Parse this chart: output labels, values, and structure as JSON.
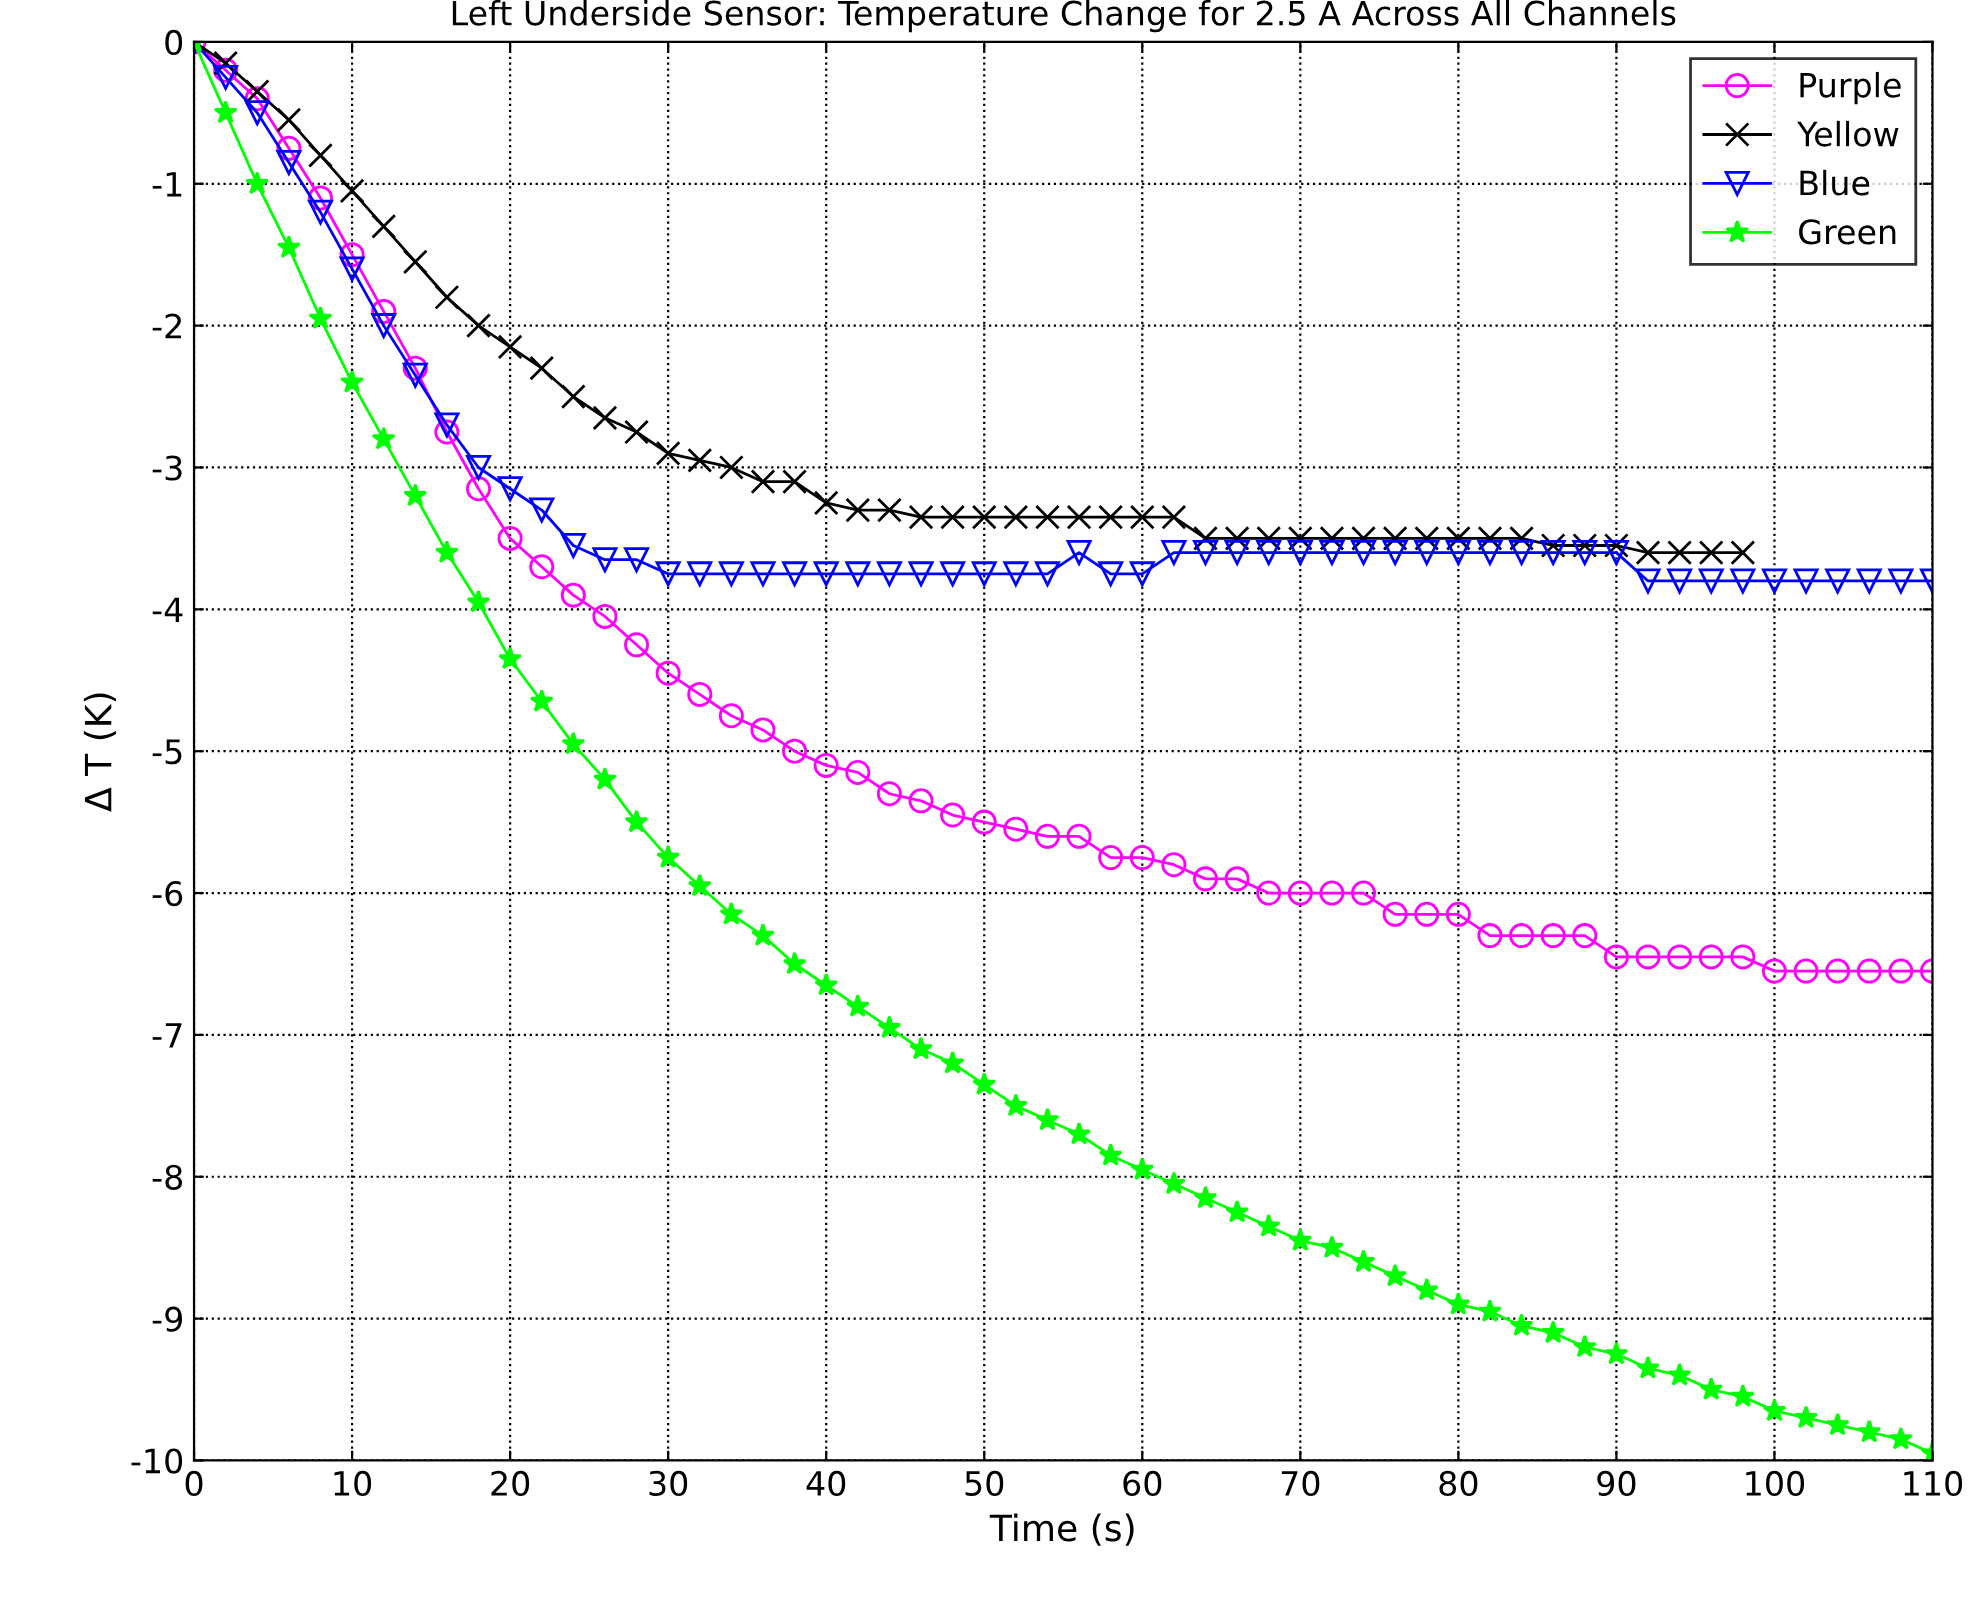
{
  "chart_data": {
    "type": "line",
    "title": "Left Underside Sensor: Temperature Change for 2.5 A Across All Channels",
    "xlabel": "Time (s)",
    "ylabel": "Δ T (K)",
    "xlim": [
      0,
      110
    ],
    "xticks": [
      0,
      10,
      20,
      30,
      40,
      50,
      60,
      70,
      80,
      90,
      100,
      110
    ],
    "ylim": [
      -10,
      0
    ],
    "yticks": [
      -10,
      -9,
      -8,
      -7,
      -6,
      -5,
      -4,
      -3,
      -2,
      -1,
      0
    ],
    "grid": true,
    "legend": "top right",
    "line_style": "solid",
    "series": [
      {
        "name": "Purple",
        "color": "#ff00ff",
        "marker": "circle",
        "x": [
          0,
          2,
          4,
          6,
          8,
          10,
          12,
          14,
          16,
          18,
          20,
          22,
          24,
          26,
          28,
          30,
          32,
          34,
          36,
          38,
          40,
          42,
          44,
          46,
          48,
          50,
          52,
          54,
          56,
          58,
          60,
          62,
          64,
          66,
          68,
          70,
          72,
          74,
          76,
          78,
          80,
          82,
          84,
          86,
          88,
          90,
          92,
          94,
          96,
          98,
          100,
          102,
          104,
          106,
          108,
          110
        ],
        "values": [
          0,
          -0.2,
          -0.4,
          -0.75,
          -1.1,
          -1.5,
          -1.9,
          -2.3,
          -2.75,
          -3.15,
          -3.5,
          -3.7,
          -3.9,
          -4.05,
          -4.25,
          -4.45,
          -4.6,
          -4.75,
          -4.85,
          -5.0,
          -5.1,
          -5.15,
          -5.3,
          -5.35,
          -5.45,
          -5.5,
          -5.55,
          -5.6,
          -5.6,
          -5.75,
          -5.75,
          -5.8,
          -5.9,
          -5.9,
          -6.0,
          -6.0,
          -6.0,
          -6.0,
          -6.15,
          -6.15,
          -6.15,
          -6.3,
          -6.3,
          -6.3,
          -6.3,
          -6.45,
          -6.45,
          -6.45,
          -6.45,
          -6.45,
          -6.55,
          -6.55,
          -6.55,
          -6.55,
          -6.55,
          -6.55
        ]
      },
      {
        "name": "Yellow",
        "color": "#000000",
        "marker": "cross",
        "x": [
          0,
          2,
          4,
          6,
          8,
          10,
          12,
          14,
          16,
          18,
          20,
          22,
          24,
          26,
          28,
          30,
          32,
          34,
          36,
          38,
          40,
          42,
          44,
          46,
          48,
          50,
          52,
          54,
          56,
          58,
          60,
          62,
          64,
          66,
          68,
          70,
          72,
          74,
          76,
          78,
          80,
          82,
          84,
          86,
          88,
          90,
          92,
          94,
          96,
          98
        ],
        "values": [
          0,
          -0.15,
          -0.35,
          -0.55,
          -0.8,
          -1.05,
          -1.3,
          -1.55,
          -1.8,
          -2.0,
          -2.15,
          -2.3,
          -2.5,
          -2.65,
          -2.75,
          -2.9,
          -2.95,
          -3.0,
          -3.1,
          -3.1,
          -3.25,
          -3.3,
          -3.3,
          -3.35,
          -3.35,
          -3.35,
          -3.35,
          -3.35,
          -3.35,
          -3.35,
          -3.35,
          -3.35,
          -3.5,
          -3.5,
          -3.5,
          -3.5,
          -3.5,
          -3.5,
          -3.5,
          -3.5,
          -3.5,
          -3.5,
          -3.5,
          -3.55,
          -3.55,
          -3.55,
          -3.6,
          -3.6,
          -3.6,
          -3.6
        ]
      },
      {
        "name": "Blue",
        "color": "#0000ff",
        "marker": "triangle",
        "x": [
          0,
          2,
          4,
          6,
          8,
          10,
          12,
          14,
          16,
          18,
          20,
          22,
          24,
          26,
          28,
          30,
          32,
          34,
          36,
          38,
          40,
          42,
          44,
          46,
          48,
          50,
          52,
          54,
          56,
          58,
          60,
          62,
          64,
          66,
          68,
          70,
          72,
          74,
          76,
          78,
          80,
          82,
          84,
          86,
          88,
          90,
          92,
          94,
          96,
          98,
          100,
          102,
          104,
          106,
          108,
          110
        ],
        "values": [
          0,
          -0.25,
          -0.5,
          -0.85,
          -1.2,
          -1.6,
          -2.0,
          -2.35,
          -2.7,
          -3.0,
          -3.15,
          -3.3,
          -3.55,
          -3.65,
          -3.65,
          -3.75,
          -3.75,
          -3.75,
          -3.75,
          -3.75,
          -3.75,
          -3.75,
          -3.75,
          -3.75,
          -3.75,
          -3.75,
          -3.75,
          -3.75,
          -3.6,
          -3.75,
          -3.75,
          -3.6,
          -3.6,
          -3.6,
          -3.6,
          -3.6,
          -3.6,
          -3.6,
          -3.6,
          -3.6,
          -3.6,
          -3.6,
          -3.6,
          -3.6,
          -3.6,
          -3.6,
          -3.8,
          -3.8,
          -3.8,
          -3.8,
          -3.8,
          -3.8,
          -3.8,
          -3.8,
          -3.8,
          -3.8
        ]
      },
      {
        "name": "Green",
        "color": "#00ff00",
        "marker": "star",
        "x": [
          0,
          2,
          4,
          6,
          8,
          10,
          12,
          14,
          16,
          18,
          20,
          22,
          24,
          26,
          28,
          30,
          32,
          34,
          36,
          38,
          40,
          42,
          44,
          46,
          48,
          50,
          52,
          54,
          56,
          58,
          60,
          62,
          64,
          66,
          68,
          70,
          72,
          74,
          76,
          78,
          80,
          82,
          84,
          86,
          88,
          90,
          92,
          94,
          96,
          98,
          100,
          102,
          104,
          106,
          108,
          110
        ],
        "values": [
          0,
          -0.5,
          -1.0,
          -1.45,
          -1.95,
          -2.4,
          -2.8,
          -3.2,
          -3.6,
          -3.95,
          -4.35,
          -4.65,
          -4.95,
          -5.2,
          -5.5,
          -5.75,
          -5.95,
          -6.15,
          -6.3,
          -6.5,
          -6.65,
          -6.8,
          -6.95,
          -7.1,
          -7.2,
          -7.35,
          -7.5,
          -7.6,
          -7.7,
          -7.85,
          -7.95,
          -8.05,
          -8.15,
          -8.25,
          -8.35,
          -8.45,
          -8.5,
          -8.6,
          -8.7,
          -8.8,
          -8.9,
          -8.95,
          -9.05,
          -9.1,
          -9.2,
          -9.25,
          -9.35,
          -9.4,
          -9.5,
          -9.55,
          -9.65,
          -9.7,
          -9.75,
          -9.8,
          -9.85,
          -9.95
        ]
      }
    ]
  }
}
